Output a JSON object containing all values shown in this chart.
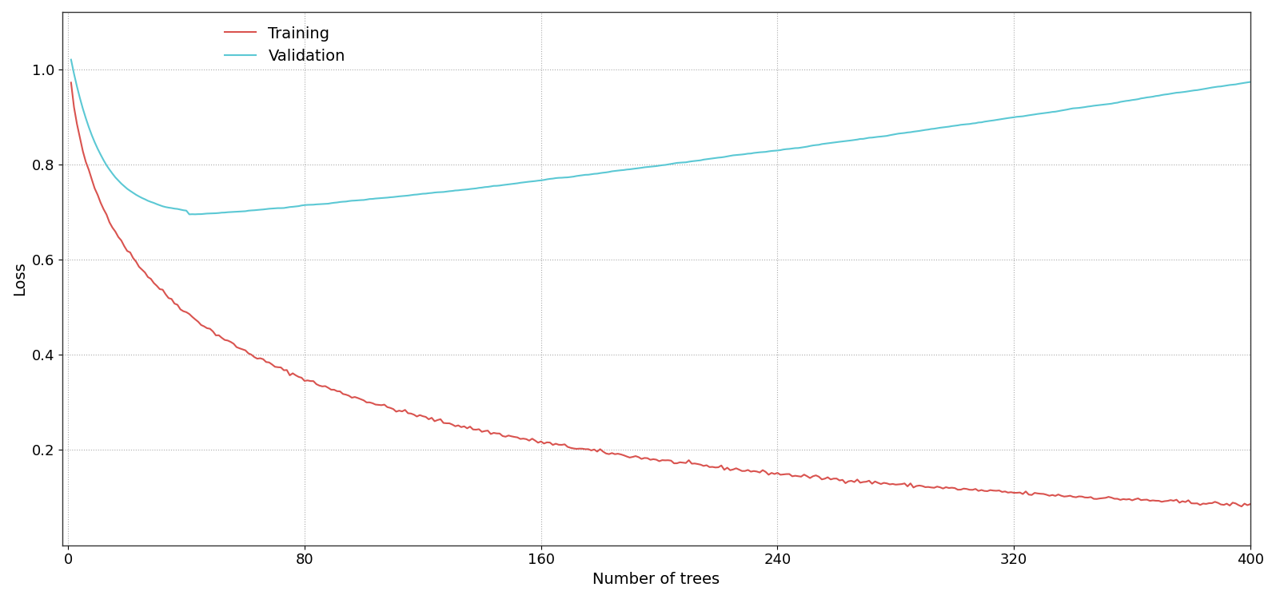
{
  "title": "",
  "xlabel": "Number of trees",
  "ylabel": "Loss",
  "xlim": [
    -2,
    400
  ],
  "ylim": [
    0.0,
    1.12
  ],
  "yticks": [
    0.2,
    0.4,
    0.6,
    0.8,
    1.0
  ],
  "xticks": [
    0,
    80,
    160,
    240,
    320,
    400
  ],
  "n_trees": 400,
  "training_color": "#d9534f",
  "validation_color": "#5bc8d4",
  "background_color": "#ffffff",
  "grid_color": "#aaaaaa",
  "legend_labels": [
    "Training",
    "Validation"
  ],
  "legend_fontsize": 14,
  "axis_fontsize": 14,
  "tick_fontsize": 13,
  "linewidth": 1.5,
  "seed": 42
}
